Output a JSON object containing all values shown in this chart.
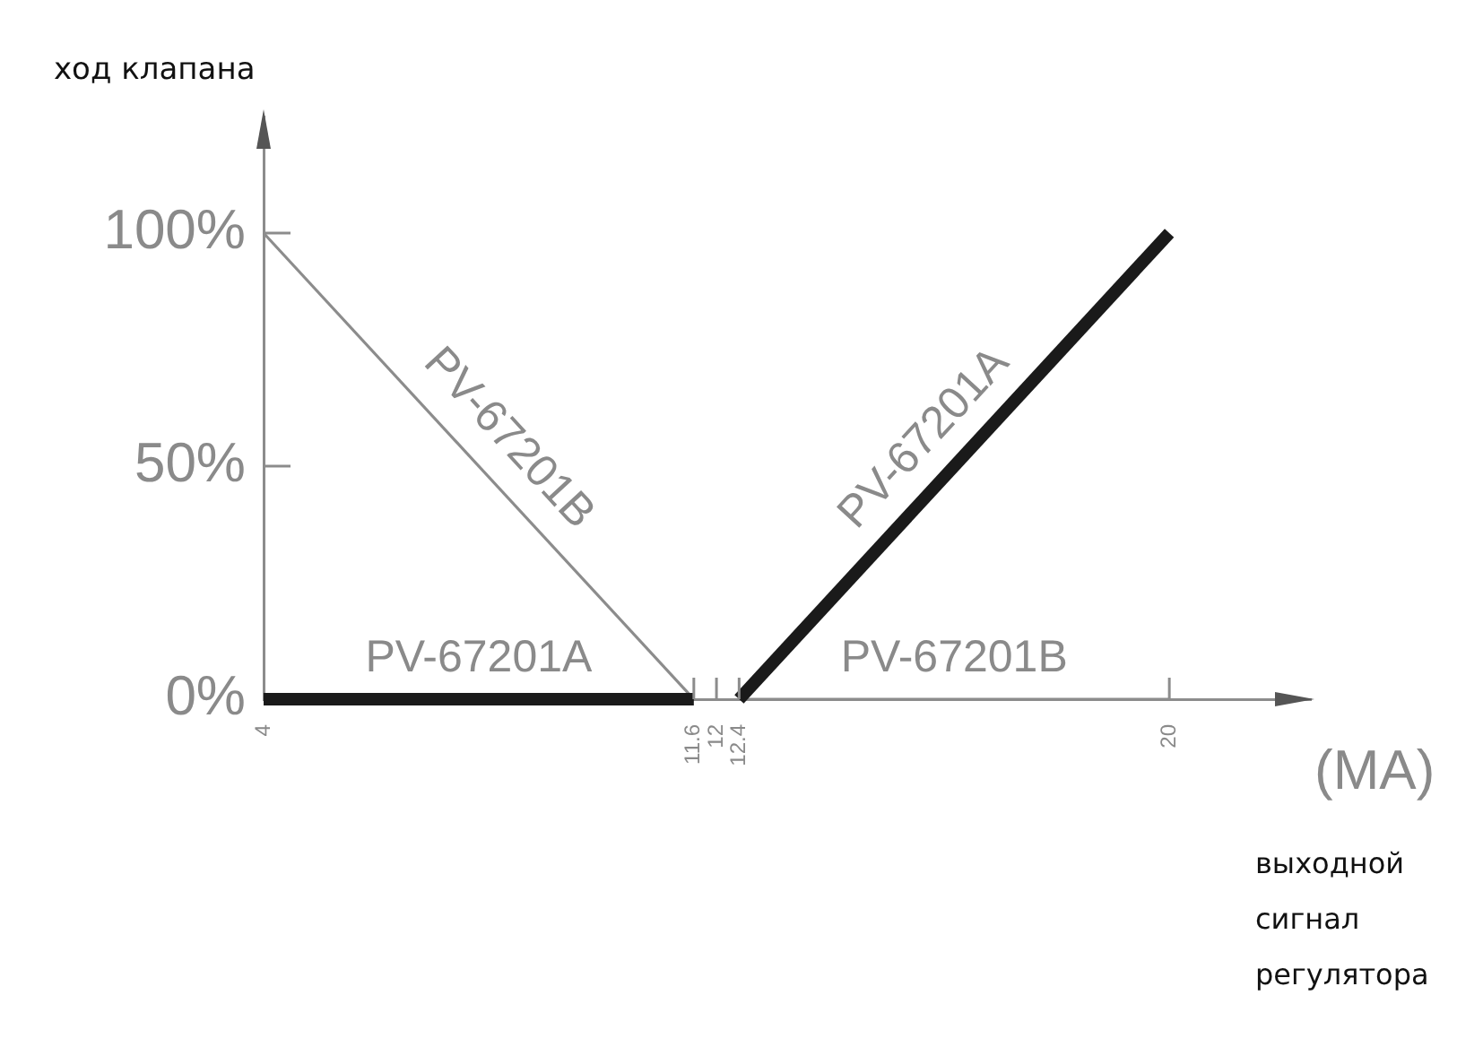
{
  "chart_data": {
    "type": "line",
    "ylabel": "ход клапана",
    "xlabel": "выходной сигнал регулятора",
    "annotations": [
      "(MA)"
    ],
    "xlim": [
      4,
      22.5
    ],
    "xticks": [
      4,
      11.6,
      12,
      12.4,
      20
    ],
    "ylim": [
      0,
      125
    ],
    "yticks": [
      {
        "value": 0,
        "label": "0%"
      },
      {
        "value": 50,
        "label": "50%"
      },
      {
        "value": 100,
        "label": "100%"
      }
    ],
    "series": [
      {
        "name": "PV-67201A",
        "color": "#1a1a1a",
        "x": [
          4,
          11.6
        ],
        "values": [
          0,
          0
        ]
      },
      {
        "name": "PV-67201A",
        "color": "#1a1a1a",
        "x": [
          12.4,
          20
        ],
        "values": [
          0,
          100
        ]
      },
      {
        "name": "PV-67201B",
        "color": "#8c8c8c",
        "x": [
          4,
          11.6
        ],
        "values": [
          100,
          0
        ]
      },
      {
        "name": "PV-67201B",
        "color": "#8c8c8c",
        "x": [
          12.4,
          20
        ],
        "values": [
          0,
          0
        ]
      }
    ],
    "grid": false,
    "legend": false,
    "marker": "none"
  }
}
